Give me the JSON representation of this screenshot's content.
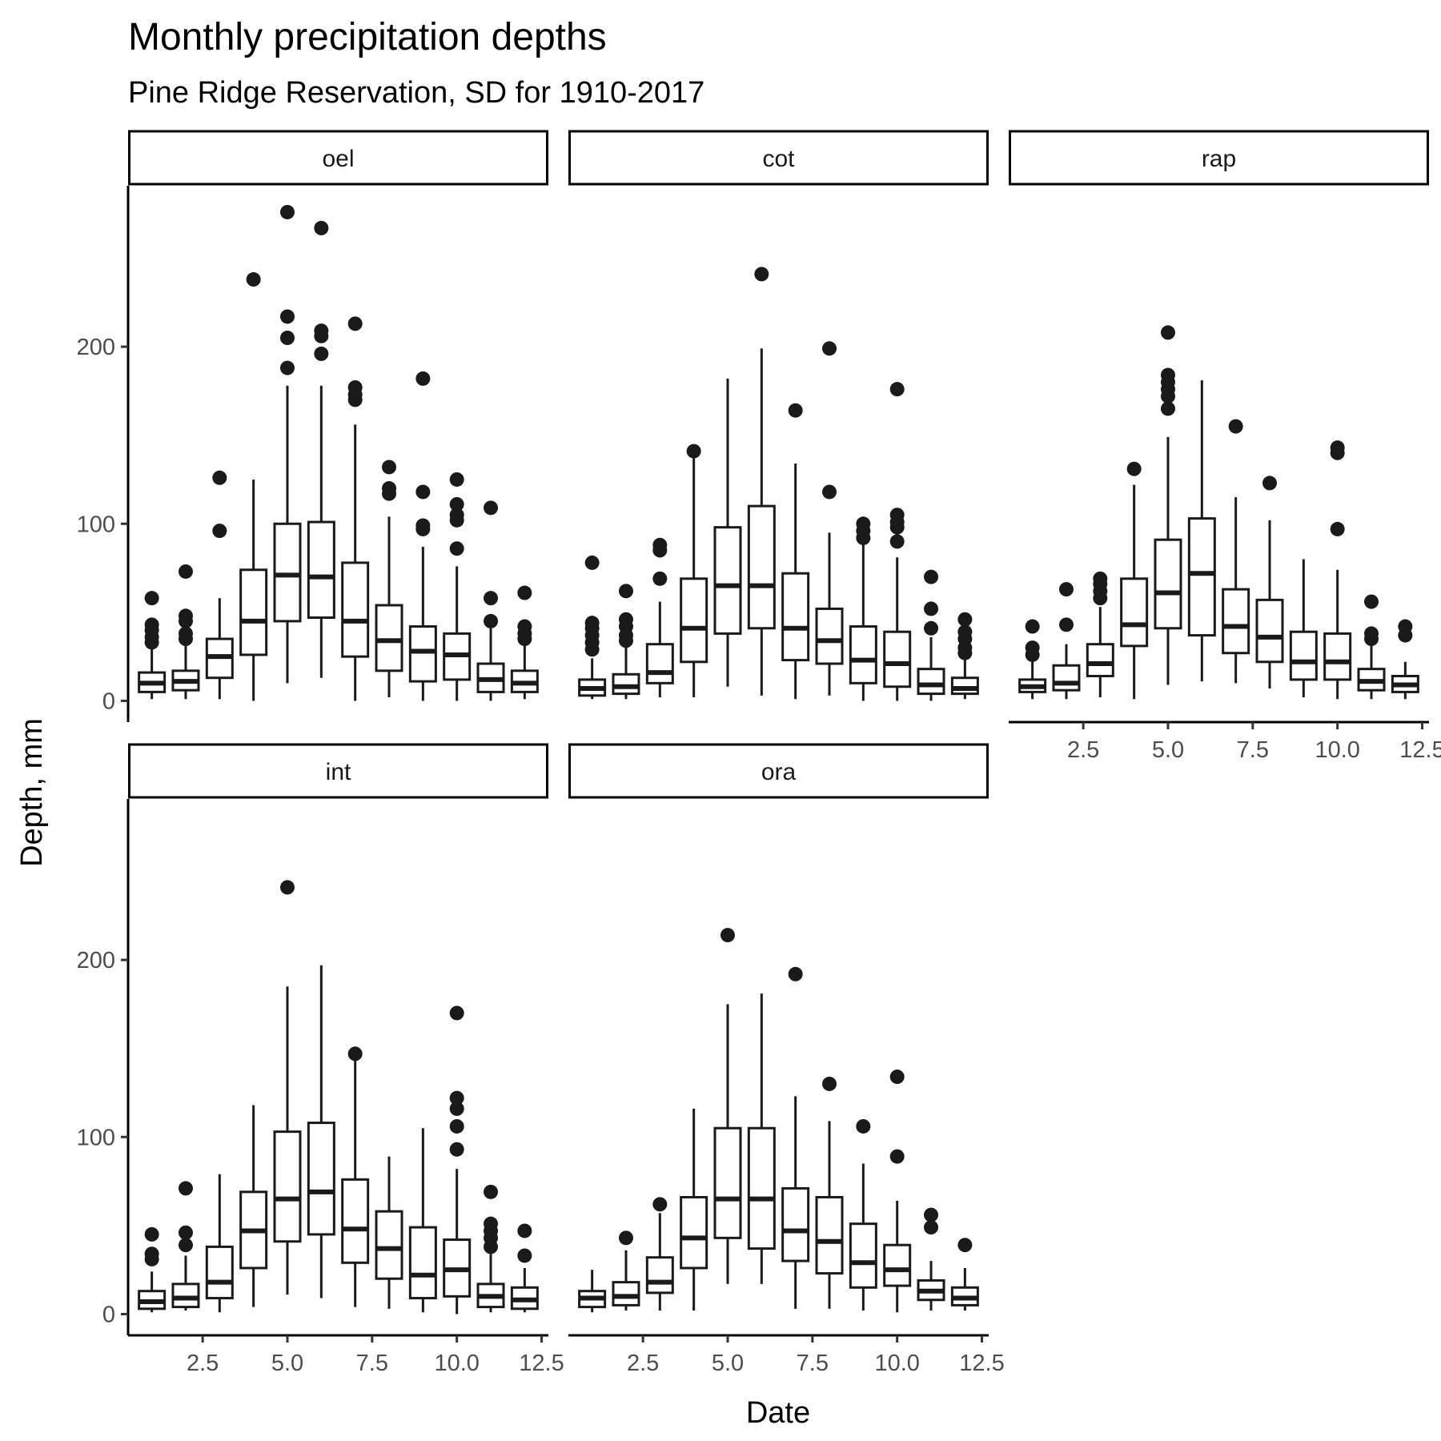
{
  "chart_data": {
    "type": "boxplot",
    "title": "Monthly precipitation depths",
    "subtitle": "Pine Ridge Reservation, SD for 1910-2017",
    "xlabel": "Date",
    "ylabel": "Depth, mm",
    "xlim": [
      0.3,
      12.7
    ],
    "ylim": [
      -12,
      290
    ],
    "x_ticks": [
      2.5,
      5.0,
      7.5,
      10.0,
      12.5
    ],
    "x_tick_labels": [
      "2.5",
      "5.0",
      "7.5",
      "10.0",
      "12.5"
    ],
    "y_ticks": [
      0,
      100,
      200
    ],
    "y_tick_labels": [
      "0",
      "100",
      "200"
    ],
    "grid": false,
    "facets": [
      {
        "name": "oel",
        "boxes": [
          {
            "x": 1,
            "min": 1,
            "q1": 5,
            "median": 10,
            "q3": 16,
            "max": 31,
            "outliers": [
              33,
              36,
              40,
              43,
              58
            ]
          },
          {
            "x": 2,
            "min": 1,
            "q1": 6,
            "median": 11,
            "q3": 17,
            "max": 32,
            "outliers": [
              35,
              38,
              45,
              48,
              73
            ]
          },
          {
            "x": 3,
            "min": 1,
            "q1": 13,
            "median": 25,
            "q3": 35,
            "max": 58,
            "outliers": [
              96,
              126
            ]
          },
          {
            "x": 4,
            "min": 0,
            "q1": 26,
            "median": 45,
            "q3": 74,
            "max": 125,
            "outliers": [
              238
            ]
          },
          {
            "x": 5,
            "min": 10,
            "q1": 45,
            "median": 71,
            "q3": 100,
            "max": 178,
            "outliers": [
              188,
              205,
              217,
              276
            ]
          },
          {
            "x": 6,
            "min": 13,
            "q1": 47,
            "median": 70,
            "q3": 101,
            "max": 178,
            "outliers": [
              196,
              206,
              209,
              267
            ]
          },
          {
            "x": 7,
            "min": 0,
            "q1": 25,
            "median": 45,
            "q3": 78,
            "max": 156,
            "outliers": [
              170,
              173,
              177,
              213
            ]
          },
          {
            "x": 8,
            "min": 2,
            "q1": 17,
            "median": 34,
            "q3": 54,
            "max": 104,
            "outliers": [
              117,
              120,
              132
            ]
          },
          {
            "x": 9,
            "min": 0,
            "q1": 11,
            "median": 28,
            "q3": 42,
            "max": 87,
            "outliers": [
              97,
              99,
              118,
              182
            ]
          },
          {
            "x": 10,
            "min": 0,
            "q1": 12,
            "median": 26,
            "q3": 38,
            "max": 76,
            "outliers": [
              86,
              102,
              105,
              111,
              125
            ]
          },
          {
            "x": 11,
            "min": 0,
            "q1": 5,
            "median": 12,
            "q3": 21,
            "max": 41,
            "outliers": [
              45,
              58,
              109
            ]
          },
          {
            "x": 12,
            "min": 1,
            "q1": 5,
            "median": 10,
            "q3": 17,
            "max": 33,
            "outliers": [
              35,
              38,
              42,
              61
            ]
          }
        ]
      },
      {
        "name": "cot",
        "boxes": [
          {
            "x": 1,
            "min": 1,
            "q1": 3,
            "median": 7,
            "q3": 12,
            "max": 24,
            "outliers": [
              29,
              33,
              37,
              41,
              44,
              78
            ]
          },
          {
            "x": 2,
            "min": 1,
            "q1": 4,
            "median": 8,
            "q3": 15,
            "max": 31,
            "outliers": [
              34,
              37,
              42,
              46,
              62
            ]
          },
          {
            "x": 3,
            "min": 2,
            "q1": 10,
            "median": 16,
            "q3": 32,
            "max": 56,
            "outliers": [
              69,
              85,
              88
            ]
          },
          {
            "x": 4,
            "min": 2,
            "q1": 22,
            "median": 41,
            "q3": 69,
            "max": 138,
            "outliers": [
              141
            ]
          },
          {
            "x": 5,
            "min": 8,
            "q1": 38,
            "median": 65,
            "q3": 98,
            "max": 182,
            "outliers": []
          },
          {
            "x": 6,
            "min": 3,
            "q1": 41,
            "median": 65,
            "q3": 110,
            "max": 199,
            "outliers": [
              241
            ]
          },
          {
            "x": 7,
            "min": 1,
            "q1": 23,
            "median": 41,
            "q3": 72,
            "max": 134,
            "outliers": [
              164
            ]
          },
          {
            "x": 8,
            "min": 3,
            "q1": 21,
            "median": 34,
            "q3": 52,
            "max": 95,
            "outliers": [
              118,
              199
            ]
          },
          {
            "x": 9,
            "min": 0,
            "q1": 10,
            "median": 23,
            "q3": 42,
            "max": 89,
            "outliers": [
              92,
              96,
              100
            ]
          },
          {
            "x": 10,
            "min": 0,
            "q1": 8,
            "median": 21,
            "q3": 39,
            "max": 81,
            "outliers": [
              90,
              98,
              101,
              105,
              176
            ]
          },
          {
            "x": 11,
            "min": 0,
            "q1": 4,
            "median": 9,
            "q3": 18,
            "max": 36,
            "outliers": [
              41,
              52,
              70
            ]
          },
          {
            "x": 12,
            "min": 1,
            "q1": 4,
            "median": 7,
            "q3": 13,
            "max": 25,
            "outliers": [
              27,
              30,
              35,
              39,
              46
            ]
          }
        ]
      },
      {
        "name": "rap",
        "boxes": [
          {
            "x": 1,
            "min": 1,
            "q1": 5,
            "median": 8,
            "q3": 12,
            "max": 22,
            "outliers": [
              26,
              30,
              42
            ]
          },
          {
            "x": 2,
            "min": 1,
            "q1": 6,
            "median": 10,
            "q3": 20,
            "max": 32,
            "outliers": [
              43,
              63
            ]
          },
          {
            "x": 3,
            "min": 2,
            "q1": 14,
            "median": 21,
            "q3": 32,
            "max": 53,
            "outliers": [
              58,
              62,
              66,
              69
            ]
          },
          {
            "x": 4,
            "min": 1,
            "q1": 31,
            "median": 43,
            "q3": 69,
            "max": 122,
            "outliers": [
              131
            ]
          },
          {
            "x": 5,
            "min": 9,
            "q1": 41,
            "median": 61,
            "q3": 91,
            "max": 149,
            "outliers": [
              165,
              172,
              176,
              180,
              184,
              208
            ]
          },
          {
            "x": 6,
            "min": 11,
            "q1": 37,
            "median": 72,
            "q3": 103,
            "max": 181,
            "outliers": []
          },
          {
            "x": 7,
            "min": 10,
            "q1": 27,
            "median": 42,
            "q3": 63,
            "max": 115,
            "outliers": [
              155
            ]
          },
          {
            "x": 8,
            "min": 7,
            "q1": 22,
            "median": 36,
            "q3": 57,
            "max": 102,
            "outliers": [
              123
            ]
          },
          {
            "x": 9,
            "min": 2,
            "q1": 12,
            "median": 22,
            "q3": 39,
            "max": 80,
            "outliers": []
          },
          {
            "x": 10,
            "min": 1,
            "q1": 12,
            "median": 22,
            "q3": 38,
            "max": 74,
            "outliers": [
              97,
              140,
              143
            ]
          },
          {
            "x": 11,
            "min": 1,
            "q1": 6,
            "median": 11,
            "q3": 18,
            "max": 31,
            "outliers": [
              35,
              38,
              56
            ]
          },
          {
            "x": 12,
            "min": 1,
            "q1": 5,
            "median": 9,
            "q3": 14,
            "max": 22,
            "outliers": [
              37,
              42
            ]
          }
        ]
      },
      {
        "name": "int",
        "boxes": [
          {
            "x": 1,
            "min": 1,
            "q1": 3,
            "median": 7,
            "q3": 13,
            "max": 24,
            "outliers": [
              31,
              34,
              45
            ]
          },
          {
            "x": 2,
            "min": 2,
            "q1": 4,
            "median": 9,
            "q3": 17,
            "max": 33,
            "outliers": [
              39,
              46,
              71
            ]
          },
          {
            "x": 3,
            "min": 1,
            "q1": 9,
            "median": 18,
            "q3": 38,
            "max": 79,
            "outliers": []
          },
          {
            "x": 4,
            "min": 4,
            "q1": 26,
            "median": 47,
            "q3": 69,
            "max": 118,
            "outliers": []
          },
          {
            "x": 5,
            "min": 11,
            "q1": 41,
            "median": 65,
            "q3": 103,
            "max": 185,
            "outliers": [
              241
            ]
          },
          {
            "x": 6,
            "min": 9,
            "q1": 45,
            "median": 69,
            "q3": 108,
            "max": 197,
            "outliers": []
          },
          {
            "x": 7,
            "min": 4,
            "q1": 29,
            "median": 48,
            "q3": 76,
            "max": 144,
            "outliers": [
              147
            ]
          },
          {
            "x": 8,
            "min": 3,
            "q1": 20,
            "median": 37,
            "q3": 58,
            "max": 89,
            "outliers": []
          },
          {
            "x": 9,
            "min": 1,
            "q1": 9,
            "median": 22,
            "q3": 49,
            "max": 105,
            "outliers": []
          },
          {
            "x": 10,
            "min": 0,
            "q1": 10,
            "median": 25,
            "q3": 42,
            "max": 82,
            "outliers": [
              93,
              106,
              116,
              122,
              170
            ]
          },
          {
            "x": 11,
            "min": 1,
            "q1": 4,
            "median": 10,
            "q3": 17,
            "max": 34,
            "outliers": [
              38,
              43,
              47,
              51,
              69
            ]
          },
          {
            "x": 12,
            "min": 1,
            "q1": 3,
            "median": 8,
            "q3": 15,
            "max": 26,
            "outliers": [
              33,
              47
            ]
          }
        ]
      },
      {
        "name": "ora",
        "boxes": [
          {
            "x": 1,
            "min": 1,
            "q1": 4,
            "median": 9,
            "q3": 13,
            "max": 25,
            "outliers": []
          },
          {
            "x": 2,
            "min": 2,
            "q1": 5,
            "median": 10,
            "q3": 18,
            "max": 36,
            "outliers": [
              43
            ]
          },
          {
            "x": 3,
            "min": 2,
            "q1": 12,
            "median": 18,
            "q3": 32,
            "max": 57,
            "outliers": [
              62
            ]
          },
          {
            "x": 4,
            "min": 2,
            "q1": 26,
            "median": 43,
            "q3": 66,
            "max": 116,
            "outliers": []
          },
          {
            "x": 5,
            "min": 17,
            "q1": 43,
            "median": 65,
            "q3": 105,
            "max": 175,
            "outliers": [
              214
            ]
          },
          {
            "x": 6,
            "min": 17,
            "q1": 37,
            "median": 65,
            "q3": 105,
            "max": 181,
            "outliers": []
          },
          {
            "x": 7,
            "min": 3,
            "q1": 30,
            "median": 47,
            "q3": 71,
            "max": 123,
            "outliers": [
              192
            ]
          },
          {
            "x": 8,
            "min": 3,
            "q1": 23,
            "median": 41,
            "q3": 66,
            "max": 109,
            "outliers": [
              130
            ]
          },
          {
            "x": 9,
            "min": 2,
            "q1": 15,
            "median": 29,
            "q3": 51,
            "max": 85,
            "outliers": [
              106
            ]
          },
          {
            "x": 10,
            "min": 1,
            "q1": 16,
            "median": 25,
            "q3": 39,
            "max": 64,
            "outliers": [
              89,
              134
            ]
          },
          {
            "x": 11,
            "min": 2,
            "q1": 8,
            "median": 13,
            "q3": 19,
            "max": 30,
            "outliers": [
              49,
              56
            ]
          },
          {
            "x": 12,
            "min": 2,
            "q1": 5,
            "median": 9,
            "q3": 15,
            "max": 26,
            "outliers": [
              39
            ]
          }
        ]
      }
    ]
  }
}
